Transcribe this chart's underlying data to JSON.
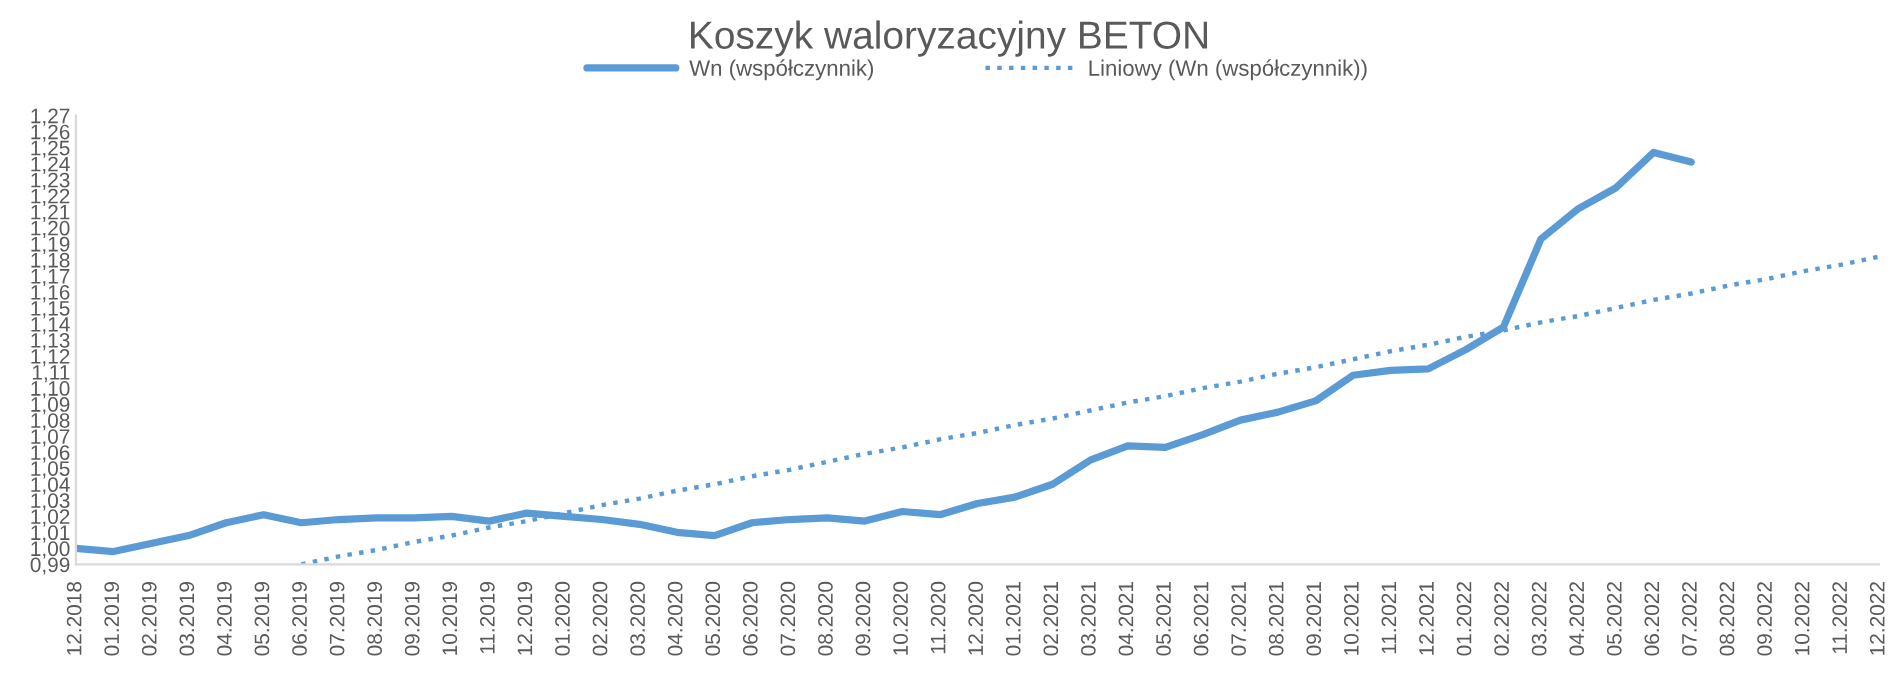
{
  "chart_data": {
    "type": "line",
    "title": "Koszyk waloryzacyjny BETON",
    "categories": [
      "12.2018",
      "01.2019",
      "02.2019",
      "03.2019",
      "04.2019",
      "05.2019",
      "06.2019",
      "07.2019",
      "08.2019",
      "09.2019",
      "10.2019",
      "11.2019",
      "12.2019",
      "01.2020",
      "02.2020",
      "03.2020",
      "04.2020",
      "05.2020",
      "06.2020",
      "07.2020",
      "08.2020",
      "09.2020",
      "10.2020",
      "11.2020",
      "12.2020",
      "01.2021",
      "02.2021",
      "03.2021",
      "04.2021",
      "05.2021",
      "06.2021",
      "07.2021",
      "08.2021",
      "09.2021",
      "10.2021",
      "11.2021",
      "12.2021",
      "01.2022",
      "02.2022",
      "03.2022",
      "04.2022",
      "05.2022",
      "06.2022",
      "07.2022",
      "08.2022",
      "09.2022",
      "10.2022",
      "11.2022",
      "12.2022"
    ],
    "series": [
      {
        "name": "Wn (współczynnik)",
        "color": "#5b9bd5",
        "line_style": "solid",
        "values": [
          1.0,
          0.998,
          1.003,
          1.008,
          1.016,
          1.021,
          1.016,
          1.018,
          1.019,
          1.019,
          1.02,
          1.017,
          1.022,
          1.02,
          1.018,
          1.015,
          1.01,
          1.008,
          1.016,
          1.018,
          1.019,
          1.017,
          1.023,
          1.021,
          1.028,
          1.032,
          1.04,
          1.055,
          1.064,
          1.063,
          1.071,
          1.08,
          1.085,
          1.092,
          1.108,
          1.111,
          1.112,
          1.124,
          1.138,
          1.193,
          1.212,
          1.225,
          1.247,
          1.241,
          null,
          null,
          null,
          null,
          null
        ]
      },
      {
        "name": "Liniowy (Wn (współczynnik))",
        "color": "#5b9bd5",
        "line_style": "dotted",
        "values": [
          null,
          null,
          null,
          null,
          null,
          null,
          0.99,
          0.995,
          0.999,
          1.004,
          1.008,
          1.013,
          1.017,
          1.022,
          1.027,
          1.031,
          1.036,
          1.04,
          1.045,
          1.049,
          1.054,
          1.059,
          1.063,
          1.068,
          1.072,
          1.077,
          1.081,
          1.086,
          1.091,
          1.095,
          1.1,
          1.104,
          1.109,
          1.113,
          1.118,
          1.123,
          1.127,
          1.132,
          1.136,
          1.141,
          1.145,
          1.15,
          1.155,
          1.159,
          1.164,
          1.168,
          1.173,
          1.177,
          1.182
        ]
      }
    ],
    "ylim": [
      0.99,
      1.27
    ],
    "yticks": [
      {
        "value": 0.99,
        "label": "0,99"
      },
      {
        "value": 1.0,
        "label": "1,00"
      },
      {
        "value": 1.01,
        "label": "1,01"
      },
      {
        "value": 1.02,
        "label": "1,02"
      },
      {
        "value": 1.03,
        "label": "1,03"
      },
      {
        "value": 1.04,
        "label": "1,04"
      },
      {
        "value": 1.05,
        "label": "1,05"
      },
      {
        "value": 1.06,
        "label": "1,06"
      },
      {
        "value": 1.07,
        "label": "1,07"
      },
      {
        "value": 1.08,
        "label": "1,08"
      },
      {
        "value": 1.09,
        "label": "1,09"
      },
      {
        "value": 1.1,
        "label": "1,10"
      },
      {
        "value": 1.11,
        "label": "1,11"
      },
      {
        "value": 1.12,
        "label": "1,12"
      },
      {
        "value": 1.13,
        "label": "1,13"
      },
      {
        "value": 1.14,
        "label": "1,14"
      },
      {
        "value": 1.15,
        "label": "1,15"
      },
      {
        "value": 1.16,
        "label": "1,16"
      },
      {
        "value": 1.17,
        "label": "1,17"
      },
      {
        "value": 1.18,
        "label": "1,18"
      },
      {
        "value": 1.19,
        "label": "1,19"
      },
      {
        "value": 1.2,
        "label": "1,20"
      },
      {
        "value": 1.21,
        "label": "1,21"
      },
      {
        "value": 1.22,
        "label": "1,22"
      },
      {
        "value": 1.23,
        "label": "1,23"
      },
      {
        "value": 1.24,
        "label": "1,24"
      },
      {
        "value": 1.25,
        "label": "1,25"
      },
      {
        "value": 1.26,
        "label": "1,26"
      },
      {
        "value": 1.27,
        "label": "1,27"
      }
    ],
    "grid": false,
    "legend": "top",
    "marker": "none"
  }
}
